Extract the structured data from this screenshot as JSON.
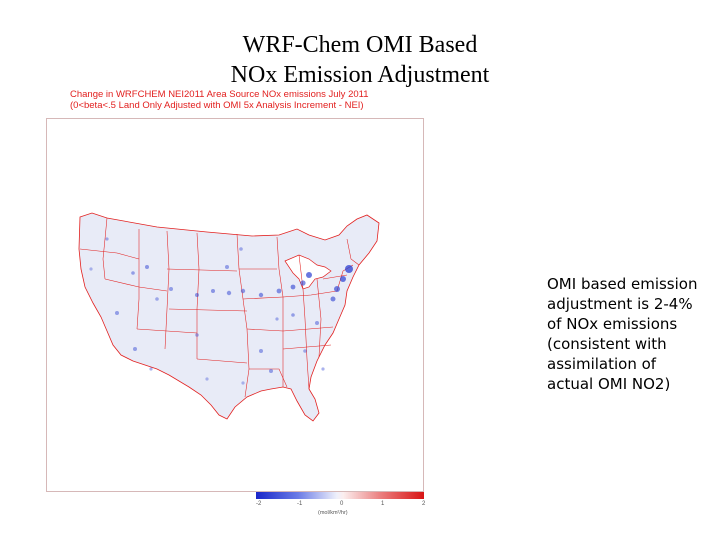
{
  "slide": {
    "title_line1": "WRF-Chem OMI Based",
    "title_line2": "NOx Emission Adjustment"
  },
  "map": {
    "caption_line1": "Change in WRFCHEM NEI2011 Area Source NOx emissions July 2011",
    "caption_line2": "(0<beta<.5 Land Only Adjusted with OMI 5x Analysis Increment - NEI)",
    "colorbar": {
      "ticks": [
        "-2",
        "-1",
        "0",
        "1",
        "2"
      ],
      "units": "(mol/km²/hr)",
      "colors": {
        "negative": "#1a26c9",
        "zero": "#f4f4fb",
        "positive": "#d81414"
      }
    },
    "colors": {
      "borders": "#e2201f",
      "land_tint": "#e8ebf7",
      "decrease": "#2b3fd1"
    }
  },
  "note": {
    "lines": [
      "OMI based emission",
      "adjustment is 2-4%",
      "of NOx emissions",
      "(consistent with",
      "assimilation of",
      "actual OMI NO2)"
    ]
  }
}
